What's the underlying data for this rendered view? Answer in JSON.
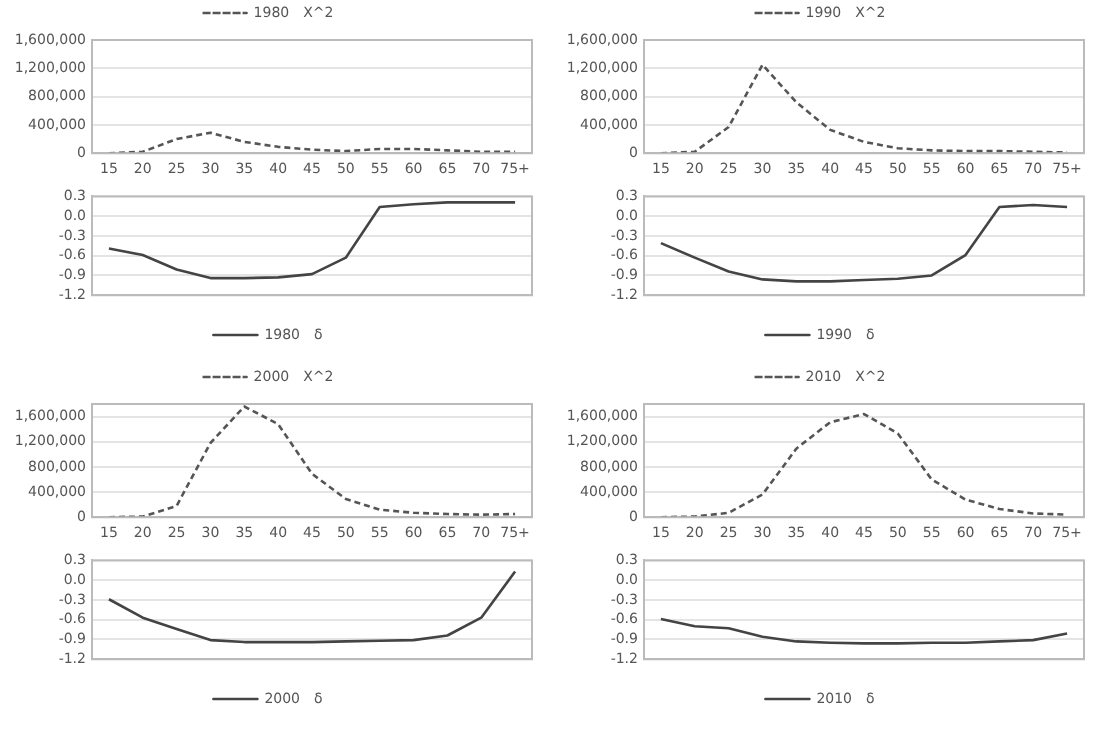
{
  "chart_data": [
    {
      "type": "line",
      "categories": [
        "15",
        "20",
        "25",
        "30",
        "35",
        "40",
        "45",
        "50",
        "55",
        "60",
        "65",
        "70",
        "75+"
      ],
      "series": [
        {
          "name": "1980　X^2",
          "color": "#555555",
          "values": [
            0,
            20000,
            200000,
            290000,
            160000,
            90000,
            50000,
            30000,
            60000,
            60000,
            40000,
            20000,
            20000
          ]
        }
      ],
      "ylim": [
        0,
        1600000
      ],
      "yticks": [
        0,
        {
          "value": 400000,
          "label": "400,000"
        },
        {
          "value": 800000,
          "label": "800,000"
        },
        {
          "value": 1200000,
          "label": "1,200,000"
        },
        {
          "value": 1600000,
          "label": "1,600,000"
        }
      ],
      "grid": "y",
      "legend": "top",
      "marker": "none",
      "line_style": "dashed"
    },
    {
      "type": "line",
      "categories": [
        "15",
        "20",
        "25",
        "30",
        "35",
        "40",
        "45",
        "50",
        "55",
        "60",
        "65",
        "70",
        "75+"
      ],
      "series": [
        {
          "name": "1990　X^2",
          "color": "#555555",
          "values": [
            0,
            20000,
            370000,
            1250000,
            720000,
            330000,
            160000,
            70000,
            40000,
            30000,
            30000,
            20000,
            10000
          ]
        }
      ],
      "ylim": [
        0,
        1600000
      ],
      "yticks": [
        0,
        {
          "value": 400000,
          "label": "400,000"
        },
        {
          "value": 800000,
          "label": "800,000"
        },
        {
          "value": 1200000,
          "label": "1,200,000"
        },
        {
          "value": 1600000,
          "label": "1,600,000"
        }
      ],
      "grid": "y",
      "legend": "top",
      "marker": "none",
      "line_style": "dashed"
    },
    {
      "type": "line",
      "categories": [
        null,
        null,
        null,
        null,
        null,
        null,
        null,
        null,
        null,
        null,
        null,
        null,
        null
      ],
      "series": [
        {
          "name": "1980　δ",
          "color": "#444444",
          "values": [
            -0.49,
            -0.59,
            -0.81,
            -0.94,
            -0.94,
            -0.93,
            -0.88,
            -0.63,
            0.14,
            0.18,
            0.21,
            0.21,
            0.21
          ]
        }
      ],
      "ylim": [
        -1.2,
        0.3
      ],
      "yticks": [
        -1.2,
        -0.9,
        -0.6,
        -0.3,
        {
          "value": 0,
          "label": "0.0"
        },
        0.3
      ],
      "grid": "y",
      "legend": "bottom",
      "marker": "none",
      "line_style": "solid"
    },
    {
      "type": "line",
      "categories": [
        null,
        null,
        null,
        null,
        null,
        null,
        null,
        null,
        null,
        null,
        null,
        null,
        null
      ],
      "series": [
        {
          "name": "1990　δ",
          "color": "#444444",
          "values": [
            -0.41,
            -0.63,
            -0.84,
            -0.96,
            -0.99,
            -0.99,
            -0.97,
            -0.95,
            -0.9,
            -0.59,
            0.14,
            0.17,
            0.14
          ]
        }
      ],
      "ylim": [
        -1.2,
        0.3
      ],
      "yticks": [
        -1.2,
        -0.9,
        -0.6,
        -0.3,
        {
          "value": 0,
          "label": "0.0"
        },
        0.3
      ],
      "grid": "y",
      "legend": "bottom",
      "marker": "none",
      "line_style": "solid"
    },
    {
      "type": "line",
      "categories": [
        "15",
        "20",
        "25",
        "30",
        "35",
        "40",
        "45",
        "50",
        "55",
        "60",
        "65",
        "70",
        "75+"
      ],
      "series": [
        {
          "name": "2000　X^2",
          "color": "#555555",
          "values": [
            0,
            10000,
            180000,
            1180000,
            1760000,
            1480000,
            690000,
            290000,
            120000,
            70000,
            50000,
            40000,
            50000
          ]
        }
      ],
      "ylim": [
        0,
        1800000
      ],
      "yticks": [
        0,
        {
          "value": 400000,
          "label": "400,000"
        },
        {
          "value": 800000,
          "label": "800,000"
        },
        {
          "value": 1200000,
          "label": "1,200,000"
        },
        {
          "value": 1600000,
          "label": "1,600,000"
        }
      ],
      "grid": "y",
      "legend": "top",
      "marker": "none",
      "line_style": "dashed"
    },
    {
      "type": "line",
      "categories": [
        "15",
        "20",
        "25",
        "30",
        "35",
        "40",
        "45",
        "50",
        "55",
        "60",
        "65",
        "70",
        "75+"
      ],
      "series": [
        {
          "name": "2010　X^2",
          "color": "#555555",
          "values": [
            0,
            10000,
            70000,
            360000,
            1090000,
            1510000,
            1640000,
            1330000,
            600000,
            280000,
            130000,
            60000,
            40000
          ]
        }
      ],
      "ylim": [
        0,
        1800000
      ],
      "yticks": [
        0,
        {
          "value": 400000,
          "label": "400,000"
        },
        {
          "value": 800000,
          "label": "800,000"
        },
        {
          "value": 1200000,
          "label": "1,200,000"
        },
        {
          "value": 1600000,
          "label": "1,600,000"
        }
      ],
      "grid": "y",
      "legend": "top",
      "marker": "none",
      "line_style": "dashed"
    },
    {
      "type": "line",
      "categories": [
        null,
        null,
        null,
        null,
        null,
        null,
        null,
        null,
        null,
        null,
        null,
        null,
        null
      ],
      "series": [
        {
          "name": "2000　δ",
          "color": "#444444",
          "values": [
            -0.29,
            -0.57,
            -0.74,
            -0.91,
            -0.94,
            -0.94,
            -0.94,
            -0.93,
            -0.92,
            -0.91,
            -0.84,
            -0.57,
            0.13
          ]
        }
      ],
      "ylim": [
        -1.2,
        0.3
      ],
      "yticks": [
        -1.2,
        -0.9,
        -0.6,
        -0.3,
        {
          "value": 0,
          "label": "0.0"
        },
        0.3
      ],
      "grid": "y",
      "legend": "bottom",
      "marker": "none",
      "line_style": "solid"
    },
    {
      "type": "line",
      "categories": [
        null,
        null,
        null,
        null,
        null,
        null,
        null,
        null,
        null,
        null,
        null,
        null,
        null
      ],
      "series": [
        {
          "name": "2010　δ",
          "color": "#444444",
          "values": [
            -0.59,
            -0.7,
            -0.73,
            -0.86,
            -0.93,
            -0.95,
            -0.96,
            -0.96,
            -0.95,
            -0.95,
            -0.93,
            -0.91,
            -0.81
          ]
        }
      ],
      "ylim": [
        -1.2,
        0.3
      ],
      "yticks": [
        -1.2,
        -0.9,
        -0.6,
        -0.3,
        {
          "value": 0,
          "label": "0.0"
        },
        0.3
      ],
      "grid": "y",
      "legend": "bottom",
      "marker": "none",
      "line_style": "solid"
    }
  ]
}
